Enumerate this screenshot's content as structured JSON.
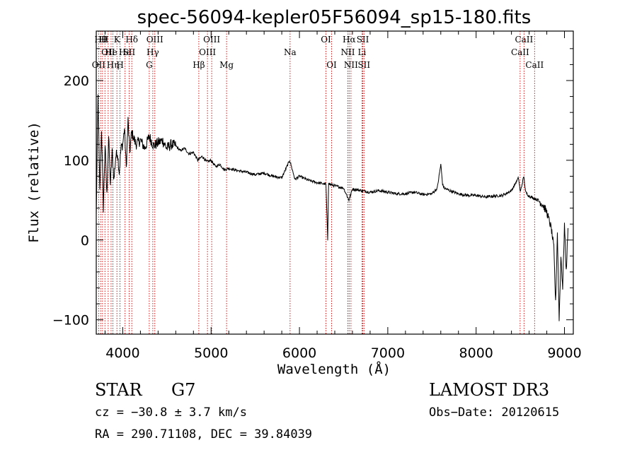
{
  "chart_data": {
    "type": "line",
    "title": "spec-56094-kepler05F56094_sp15-180.fits",
    "xlabel": "Wavelength (Å)",
    "ylabel": "Flux (relative)",
    "xlim": [
      3700,
      9100
    ],
    "ylim": [
      -118,
      262
    ],
    "xticks": [
      4000,
      5000,
      6000,
      7000,
      8000,
      9000
    ],
    "yticks": [
      -100,
      0,
      100,
      200
    ],
    "series": [
      {
        "name": "flux",
        "x": [
          3700,
          3720,
          3740,
          3760,
          3780,
          3800,
          3820,
          3840,
          3860,
          3880,
          3900,
          3920,
          3940,
          3960,
          3980,
          4000,
          4020,
          4040,
          4060,
          4080,
          4100,
          4150,
          4200,
          4250,
          4300,
          4350,
          4400,
          4450,
          4500,
          4550,
          4600,
          4650,
          4700,
          4750,
          4800,
          4850,
          4900,
          4950,
          5000,
          5050,
          5100,
          5150,
          5200,
          5300,
          5400,
          5500,
          5600,
          5700,
          5800,
          5890,
          5950,
          6000,
          6100,
          6200,
          6300,
          6320,
          6330,
          6340,
          6400,
          6500,
          6560,
          6600,
          6700,
          6800,
          6900,
          7000,
          7100,
          7200,
          7300,
          7400,
          7500,
          7560,
          7600,
          7620,
          7640,
          7700,
          7800,
          7900,
          8000,
          8100,
          8200,
          8300,
          8400,
          8480,
          8500,
          8540,
          8560,
          8600,
          8660,
          8700,
          8750,
          8800,
          8850,
          8880,
          8900,
          8920,
          8940,
          8960,
          8980,
          9000,
          9020,
          9040
        ],
        "values": [
          30,
          180,
          60,
          140,
          40,
          120,
          55,
          130,
          70,
          110,
          75,
          105,
          110,
          85,
          115,
          120,
          140,
          90,
          150,
          110,
          135,
          120,
          125,
          115,
          130,
          118,
          122,
          125,
          115,
          120,
          118,
          112,
          115,
          108,
          110,
          100,
          105,
          98,
          100,
          92,
          95,
          88,
          90,
          87,
          85,
          82,
          84,
          80,
          78,
          100,
          76,
          80,
          75,
          72,
          70,
          0,
          72,
          70,
          68,
          65,
          50,
          64,
          62,
          60,
          62,
          60,
          58,
          58,
          60,
          57,
          58,
          65,
          95,
          70,
          65,
          62,
          58,
          56,
          56,
          54,
          55,
          56,
          62,
          78,
          60,
          80,
          60,
          55,
          52,
          50,
          45,
          35,
          15,
          -10,
          -80,
          10,
          -100,
          -20,
          -60,
          20,
          -40,
          15
        ]
      }
    ],
    "lines": [
      {
        "x": 3727,
        "label": "OII",
        "row": 2
      },
      {
        "x": 3750,
        "label": "Hθ",
        "row": 0
      },
      {
        "x": 3771,
        "label": "H",
        "row": 0
      },
      {
        "x": 3798,
        "label": "H",
        "row": 0
      },
      {
        "x": 3835,
        "label": "OII",
        "row": 1
      },
      {
        "x": 3868,
        "label": "He",
        "row": 1
      },
      {
        "x": 3889,
        "label": "Hη",
        "row": 2
      },
      {
        "x": 3934,
        "label": "K",
        "row": 0
      },
      {
        "x": 3969,
        "label": "H",
        "row": 2
      },
      {
        "x": 4026,
        "label": "He",
        "row": 1
      },
      {
        "x": 4072,
        "label": "SII",
        "row": 1
      },
      {
        "x": 4102,
        "label": "Hδ",
        "row": 0
      },
      {
        "x": 4300,
        "label": "G",
        "row": 2
      },
      {
        "x": 4340,
        "label": "Hγ",
        "row": 1
      },
      {
        "x": 4363,
        "label": "OIII",
        "row": 0
      },
      {
        "x": 4861,
        "label": "Hβ",
        "row": 2
      },
      {
        "x": 4959,
        "label": "OIII",
        "row": 1
      },
      {
        "x": 5007,
        "label": "OIII",
        "row": 0
      },
      {
        "x": 5175,
        "label": "Mg",
        "row": 2
      },
      {
        "x": 5894,
        "label": "Na",
        "row": 1
      },
      {
        "x": 6300,
        "label": "OI",
        "row": 0
      },
      {
        "x": 6364,
        "label": "OI",
        "row": 2
      },
      {
        "x": 6548,
        "label": "NII",
        "row": 1
      },
      {
        "x": 6563,
        "label": "Hα",
        "row": 0
      },
      {
        "x": 6583,
        "label": "NII",
        "row": 2
      },
      {
        "x": 6708,
        "label": "Li",
        "row": 1
      },
      {
        "x": 6717,
        "label": "SII",
        "row": 0
      },
      {
        "x": 6731,
        "label": "SII",
        "row": 2
      },
      {
        "x": 8498,
        "label": "CaII",
        "row": 1
      },
      {
        "x": 8542,
        "label": "CaII",
        "row": 0
      },
      {
        "x": 8662,
        "label": "CaII",
        "row": 2
      }
    ]
  },
  "info": {
    "object_type": "STAR",
    "subclass": "G7",
    "survey": "LAMOST DR3",
    "cz": "cz = −30.8 ± 3.7 km/s",
    "obs_date": "Obs−Date: 20120615",
    "coords": "RA = 290.71108, DEC =  39.84039"
  }
}
